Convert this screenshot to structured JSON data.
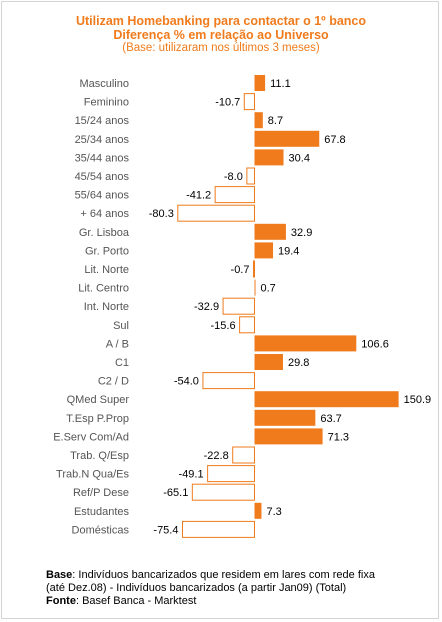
{
  "chart_data": {
    "type": "bar",
    "orientation": "horizontal",
    "title": "Utilizam Homebanking para contactar o 1º banco",
    "subtitle": "Diferença % em relação ao Universo",
    "note": "(Base: utilizaram nos últimos 3 meses)",
    "categories": [
      "Masculino",
      "Feminino",
      "15/24 anos",
      "25/34 anos",
      "35/44 anos",
      "45/54 anos",
      "55/64 anos",
      "+ 64 anos",
      "Gr. Lisboa",
      "Gr. Porto",
      "Lit. Norte",
      "Lit. Centro",
      "Int. Norte",
      "Sul",
      "A / B",
      "C1",
      "C2 / D",
      "QMed Super",
      "T.Esp P.Prop",
      "E.Serv Com/Ad",
      "Trab. Q/Esp",
      "Trab.N Qua/Es",
      "Ref/P Dese",
      "Estudantes",
      "Domésticas"
    ],
    "value_labels": [
      "11.1",
      "-10.7",
      "8.7",
      "67.8",
      "30.4",
      "-8.0",
      "-41.2",
      "-80.3",
      "32.9",
      "19.4",
      "-0.7",
      "0.7",
      "-32.9",
      "-15.6",
      "106.6",
      "29.8",
      "-54.0",
      "150.9",
      "63.7",
      "71.3",
      "-22.8",
      "-49.1",
      "-65.1",
      "7.3",
      "-75.4"
    ],
    "values": [
      11.1,
      -10.7,
      8.7,
      67.8,
      30.4,
      -8.0,
      -41.2,
      -80.3,
      32.9,
      19.4,
      -0.7,
      0.7,
      -32.9,
      -15.6,
      106.6,
      29.8,
      -54.0,
      150.9,
      63.7,
      71.3,
      -22.8,
      -49.1,
      -65.1,
      7.3,
      -75.4
    ],
    "positive_color": "#f07b1c",
    "negative_fill": "#ffffff",
    "negative_stroke": "#f07b1c",
    "title_color": "#f07b1c",
    "grid": false,
    "legend": "none"
  },
  "footer": {
    "base_label": "Base",
    "base_text": ": Indivíduos bancarizados que residem em lares com rede fixa",
    "base_text2": "(até Dez.08) - Indivíduos bancarizados (a partir Jan09) (Total)",
    "source_label": "Fonte",
    "source_text": ": Basef Banca - Marktest"
  }
}
